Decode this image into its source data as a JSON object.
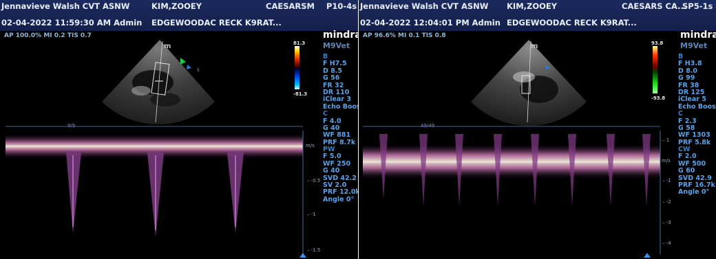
{
  "left": {
    "header": {
      "operator": "Jennavieve Walsh CVT ASNW",
      "datetime": "02-04-2022 11:59:30 AM  Admin",
      "patient": "KIM,ZOOEY",
      "clinic": "EDGEWOODAC RECK K9RAT...",
      "owner": "CAESARSM",
      "probe": "P10-4s"
    },
    "subinfo": "AP 100.0%  MI 0.2  TIS 0.7",
    "brand": "mindray",
    "model": "M9Vet",
    "scale_top": "81.3",
    "scale_bottom": "-81.3",
    "params": [
      {
        "text": "B",
        "section": true
      },
      {
        "text": "F H7.5"
      },
      {
        "text": "D 8.5"
      },
      {
        "text": "G 56"
      },
      {
        "text": "FR 32"
      },
      {
        "text": "DR 110"
      },
      {
        "text": "iClear 3"
      },
      {
        "text": "Echo Boost"
      },
      {
        "text": "C",
        "section": true
      },
      {
        "text": "F 4.0"
      },
      {
        "text": "G 40"
      },
      {
        "text": "WF 881"
      },
      {
        "text": "PRF 8.7k"
      },
      {
        "text": "PW",
        "section": true
      },
      {
        "text": "F 5.0"
      },
      {
        "text": "WF 250"
      },
      {
        "text": "G 40"
      },
      {
        "text": "SVD 42.2"
      },
      {
        "text": "SV 2.0"
      },
      {
        "text": "PRF 12.0k"
      },
      {
        "text": "Angle 0°"
      }
    ],
    "sweep": "9/9",
    "axis": {
      "unit": "m/s",
      "labels": [
        {
          "t": "-0.5",
          "y": 264
        },
        {
          "t": "-1",
          "y": 313
        },
        {
          "t": "-1.5",
          "y": 365
        }
      ]
    }
  },
  "right": {
    "header": {
      "operator": "Jennavieve Walsh CVT ASNW",
      "datetime": "02-04-2022 12:04:01 PM  Admin",
      "patient": "KIM,ZOOEY",
      "clinic": "EDGEWOODAC RECK K9RAT...",
      "owner": "CAESARS CA...",
      "probe": "SP5-1s"
    },
    "subinfo": "AP 96.6%  MI 0.1  TIS 0.8",
    "brand": "mindray",
    "model": "M9Vet",
    "scale_top": "93.8",
    "scale_bottom": "-93.8",
    "params": [
      {
        "text": "B",
        "section": true
      },
      {
        "text": "F H3.8"
      },
      {
        "text": "D 8.0"
      },
      {
        "text": "G 99"
      },
      {
        "text": "FR 38"
      },
      {
        "text": "DR 125"
      },
      {
        "text": "iClear 5"
      },
      {
        "text": "Echo Boost"
      },
      {
        "text": "C",
        "section": true
      },
      {
        "text": "F 2.3"
      },
      {
        "text": "G 58"
      },
      {
        "text": "WF 1303"
      },
      {
        "text": "PRF 5.8k"
      },
      {
        "text": "CW",
        "section": true
      },
      {
        "text": "F 2.0"
      },
      {
        "text": "WF 500"
      },
      {
        "text": "G 60"
      },
      {
        "text": "SVD 42.9"
      },
      {
        "text": "PRF 16.7k"
      },
      {
        "text": "Angle 0°"
      }
    ],
    "sweep": "49/49",
    "axis": {
      "unit": "m/s",
      "labels": [
        {
          "t": "1",
          "y": 205
        },
        {
          "t": "-1",
          "y": 264
        },
        {
          "t": "-2",
          "y": 295
        },
        {
          "t": "-3",
          "y": 325
        },
        {
          "t": "-4",
          "y": 355
        }
      ]
    }
  }
}
